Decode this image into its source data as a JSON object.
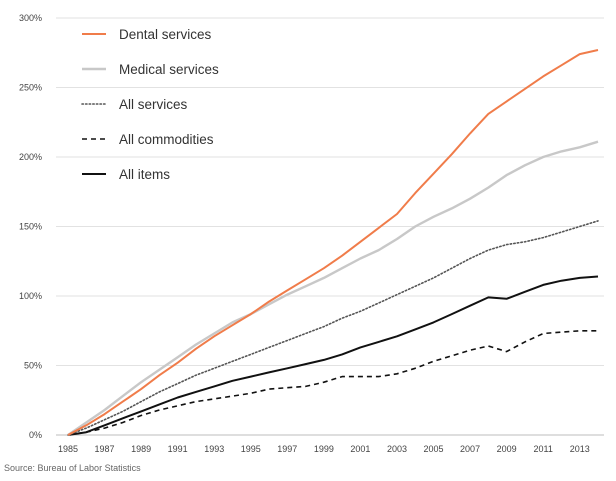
{
  "chart_data": {
    "type": "line",
    "title": "",
    "xlabel": "",
    "ylabel": "",
    "x": [
      1985,
      1986,
      1987,
      1988,
      1989,
      1990,
      1991,
      1992,
      1993,
      1994,
      1995,
      1996,
      1997,
      1998,
      1999,
      2000,
      2001,
      2002,
      2003,
      2004,
      2005,
      2006,
      2007,
      2008,
      2009,
      2010,
      2011,
      2012,
      2013,
      2014
    ],
    "xticks": [
      "1985",
      "1987",
      "1989",
      "1991",
      "1993",
      "1995",
      "1997",
      "1999",
      "2001",
      "2003",
      "2005",
      "2007",
      "2009",
      "2011",
      "2013"
    ],
    "yticks": [
      "0%",
      "50%",
      "100%",
      "150%",
      "200%",
      "250%",
      "300%"
    ],
    "ylim": [
      0,
      300
    ],
    "xlim": [
      1985,
      2014
    ],
    "grid": "horizontal",
    "legend_position": "top-left",
    "series": [
      {
        "name": "Dental services",
        "color": "#f07c4a",
        "style": "solid",
        "values": [
          0,
          7,
          15,
          24,
          33,
          43,
          52,
          62,
          71,
          79,
          87,
          96,
          104,
          112,
          120,
          129,
          139,
          149,
          159,
          174,
          188,
          202,
          217,
          231,
          240,
          249,
          258,
          266,
          274,
          277
        ]
      },
      {
        "name": "Medical services",
        "color": "#c8c8c8",
        "style": "solid",
        "values": [
          0,
          9,
          18,
          28,
          38,
          47,
          56,
          65,
          73,
          81,
          87,
          94,
          101,
          107,
          113,
          120,
          127,
          133,
          141,
          150,
          157,
          163,
          170,
          178,
          187,
          194,
          200,
          204,
          207,
          211
        ]
      },
      {
        "name": "All services",
        "color": "#555555",
        "style": "dotted",
        "values": [
          0,
          5,
          11,
          17,
          24,
          31,
          37,
          43,
          48,
          53,
          58,
          63,
          68,
          73,
          78,
          84,
          89,
          95,
          101,
          107,
          113,
          120,
          127,
          133,
          137,
          139,
          142,
          146,
          150,
          154
        ]
      },
      {
        "name": "All commodities",
        "color": "#111111",
        "style": "dashed",
        "values": [
          0,
          2,
          5,
          9,
          14,
          18,
          21,
          24,
          26,
          28,
          30,
          33,
          34,
          35,
          38,
          42,
          42,
          42,
          44,
          48,
          53,
          57,
          61,
          64,
          60,
          67,
          73,
          74,
          75,
          75
        ]
      },
      {
        "name": "All items",
        "color": "#111111",
        "style": "solid",
        "values": [
          0,
          2,
          7,
          12,
          17,
          22,
          27,
          31,
          35,
          39,
          42,
          45,
          48,
          51,
          54,
          58,
          63,
          67,
          71,
          76,
          81,
          87,
          93,
          99,
          98,
          103,
          108,
          111,
          113,
          114
        ]
      }
    ]
  },
  "source": "Source: Bureau of Labor Statistics"
}
